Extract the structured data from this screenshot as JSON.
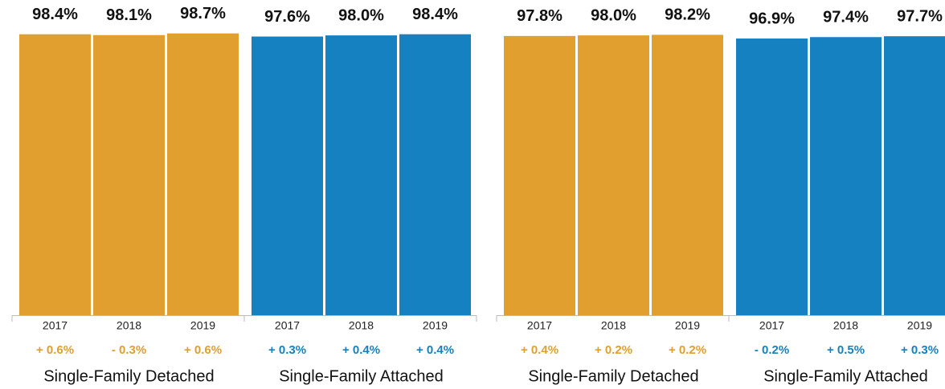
{
  "chart_data": [
    {
      "type": "bar",
      "ylim": [
        0,
        100
      ],
      "groups": [
        {
          "name": "Single-Family Detached",
          "color": "#e09f2f",
          "categories": [
            "2017",
            "2018",
            "2019"
          ],
          "values": [
            98.4,
            98.1,
            98.7
          ],
          "value_labels": [
            "98.4%",
            "98.1%",
            "98.7%"
          ],
          "changes": [
            "+ 0.6%",
            "- 0.3%",
            "+ 0.6%"
          ]
        },
        {
          "name": "Single-Family Attached",
          "color": "#1581c1",
          "categories": [
            "2017",
            "2018",
            "2019"
          ],
          "values": [
            97.6,
            98.0,
            98.4
          ],
          "value_labels": [
            "97.6%",
            "98.0%",
            "98.4%"
          ],
          "changes": [
            "+ 0.3%",
            "+ 0.4%",
            "+ 0.4%"
          ]
        }
      ]
    },
    {
      "type": "bar",
      "ylim": [
        0,
        100
      ],
      "groups": [
        {
          "name": "Single-Family Detached",
          "color": "#e09f2f",
          "categories": [
            "2017",
            "2018",
            "2019"
          ],
          "values": [
            97.8,
            98.0,
            98.2
          ],
          "value_labels": [
            "97.8%",
            "98.0%",
            "98.2%"
          ],
          "changes": [
            "+ 0.4%",
            "+ 0.2%",
            "+ 0.2%"
          ]
        },
        {
          "name": "Single-Family Attached",
          "color": "#1581c1",
          "categories": [
            "2017",
            "2018",
            "2019"
          ],
          "values": [
            96.9,
            97.4,
            97.7
          ],
          "value_labels": [
            "96.9%",
            "97.4%",
            "97.7%"
          ],
          "changes": [
            "- 0.2%",
            "+ 0.5%",
            "+ 0.3%"
          ]
        }
      ]
    }
  ]
}
